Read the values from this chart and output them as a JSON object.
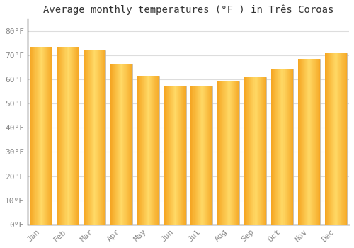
{
  "title": "Average monthly temperatures (°F ) in Três Coroas",
  "months": [
    "Jan",
    "Feb",
    "Mar",
    "Apr",
    "May",
    "Jun",
    "Jul",
    "Aug",
    "Sep",
    "Oct",
    "Nov",
    "Dec"
  ],
  "values": [
    73.5,
    73.5,
    72.0,
    66.5,
    61.5,
    57.5,
    57.5,
    59.0,
    61.0,
    64.5,
    68.5,
    71.0
  ],
  "bar_color_center": "#FFD966",
  "bar_color_edge": "#F5A623",
  "background_color": "#FFFFFF",
  "grid_color": "#DDDDDD",
  "ylabel_ticks": [
    "0°F",
    "10°F",
    "20°F",
    "30°F",
    "40°F",
    "50°F",
    "60°F",
    "70°F",
    "80°F"
  ],
  "ytick_vals": [
    0,
    10,
    20,
    30,
    40,
    50,
    60,
    70,
    80
  ],
  "ylim": [
    0,
    85
  ],
  "title_fontsize": 10,
  "tick_fontsize": 8,
  "tick_color": "#888888",
  "spine_color": "#888888"
}
